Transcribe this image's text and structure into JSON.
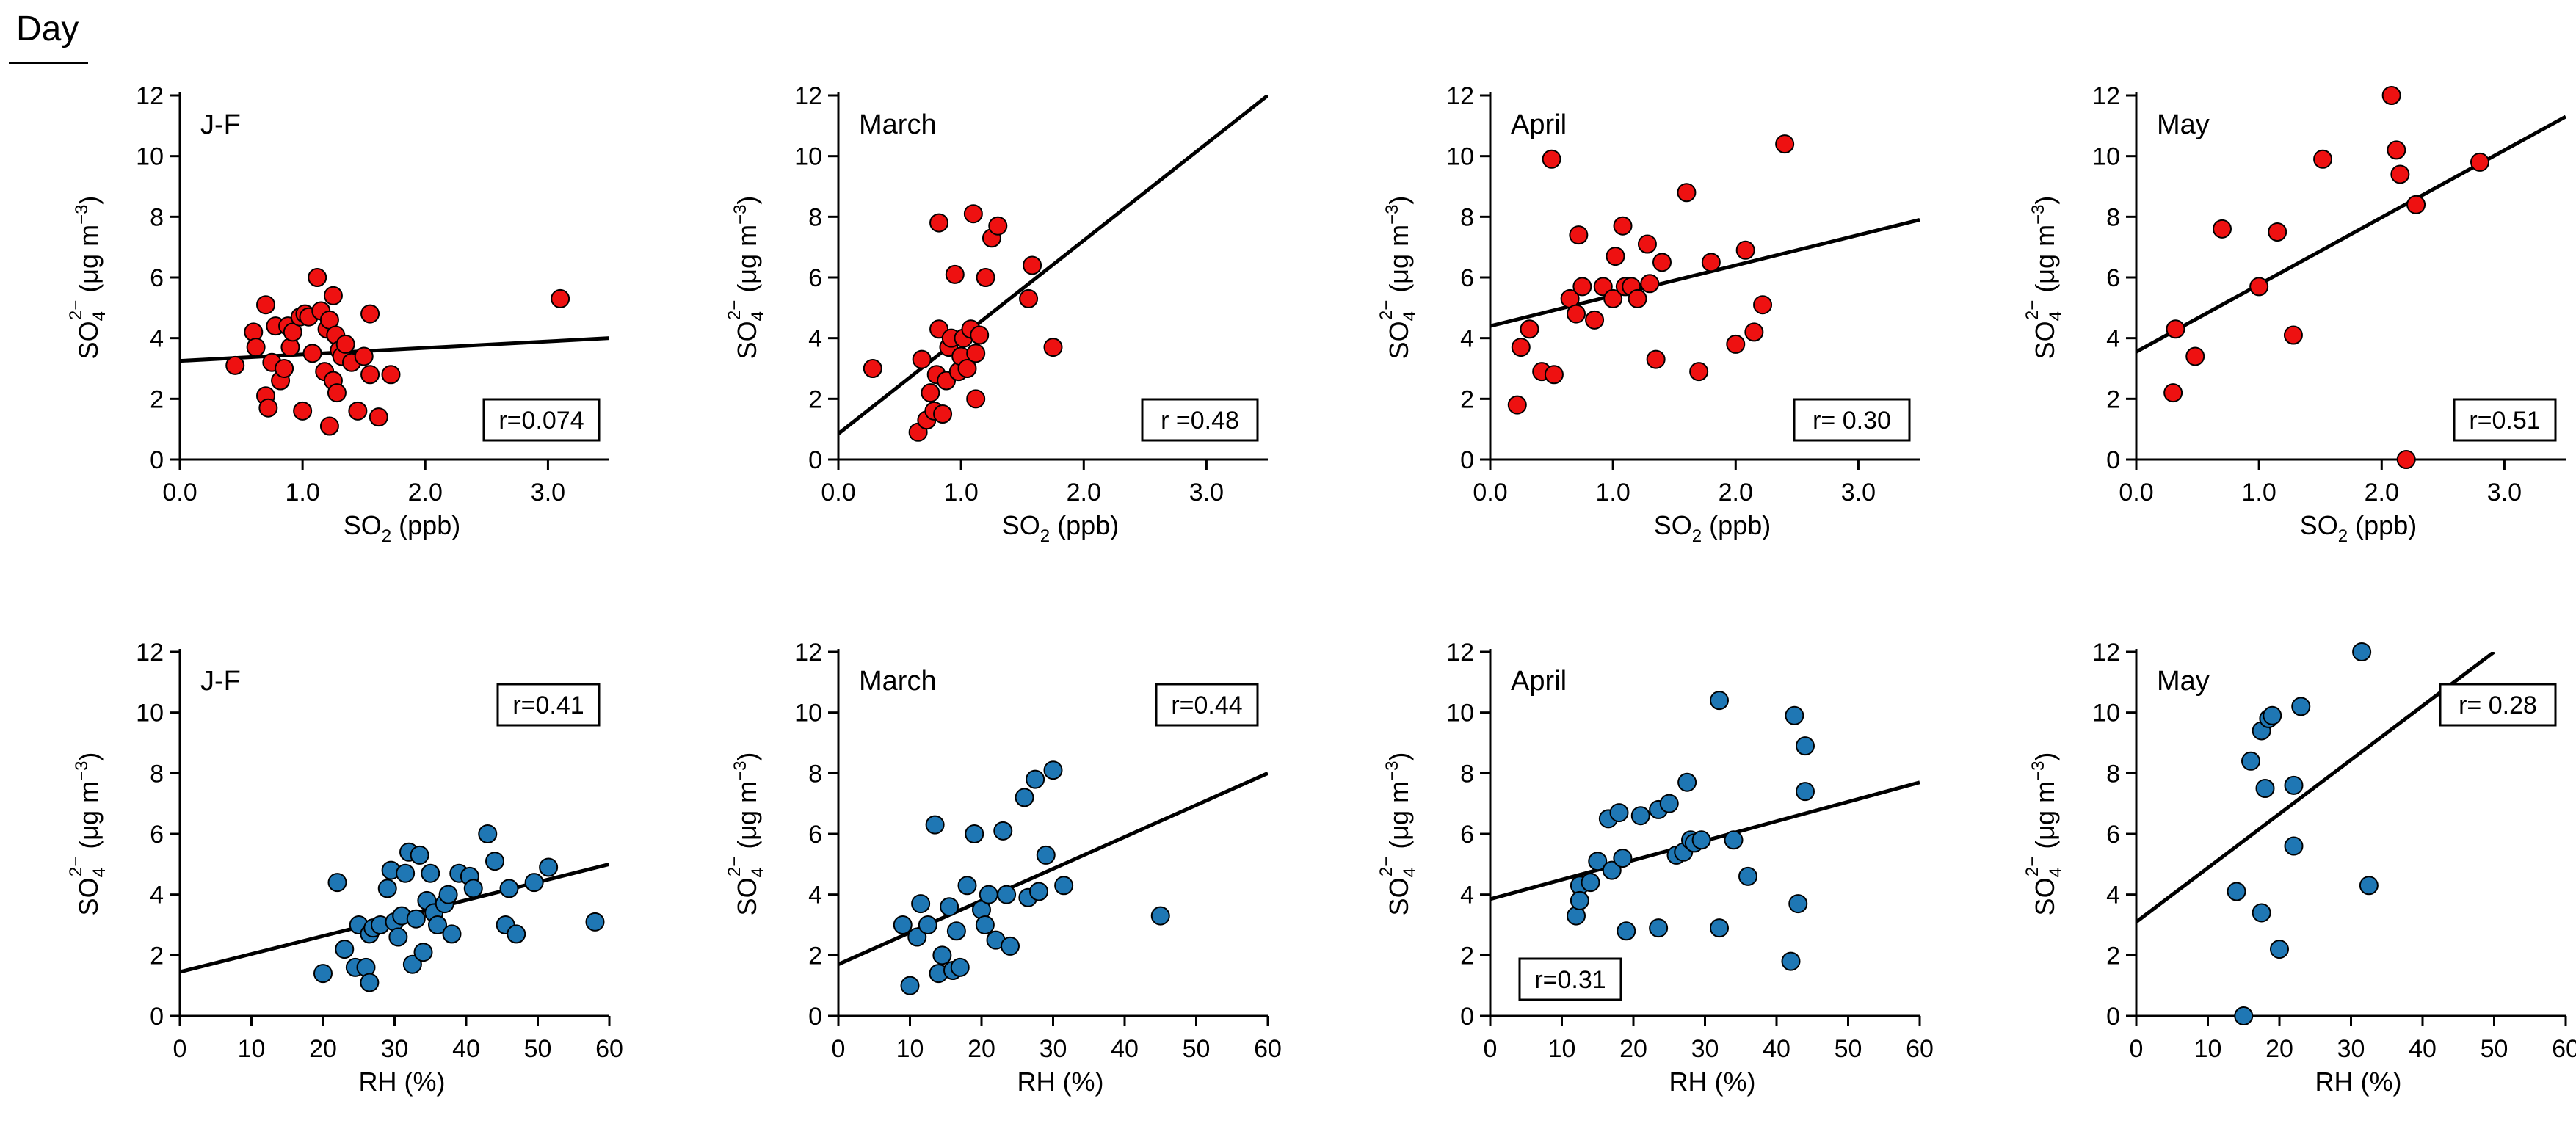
{
  "figure": {
    "title": "Day"
  },
  "style": {
    "red_fill": "#ee1111",
    "blue_fill": "#1f77b4",
    "line_color": "#000000"
  },
  "axis_labels": {
    "y_main": "SO",
    "y_sub": "4",
    "y_sup": "2−",
    "y_unit": " (μg m",
    "y_unit_sup": "−3",
    "y_close": ")",
    "x_so2_main": "SO",
    "x_so2_sub": "2",
    "x_so2_unit": " (ppb)",
    "x_rh": "RH (%)"
  },
  "chart_data": [
    {
      "type": "scatter",
      "panel": "J-F",
      "variable": "SO2",
      "xlim": [
        0,
        3.5
      ],
      "ylim": [
        0,
        12
      ],
      "xticks": [
        "0.0",
        "1.0",
        "2.0",
        "3.0"
      ],
      "yticks": [
        "0",
        "2",
        "4",
        "6",
        "8",
        "10",
        "12"
      ],
      "annotation": "r=0.074",
      "annotation_position": "bottom-right",
      "color": "red",
      "fit": {
        "x": [
          0,
          3.5
        ],
        "y": [
          3.25,
          4.0
        ]
      },
      "points": [
        [
          0.45,
          3.1
        ],
        [
          0.6,
          4.2
        ],
        [
          0.62,
          3.7
        ],
        [
          0.7,
          2.1
        ],
        [
          0.7,
          5.1
        ],
        [
          0.72,
          1.7
        ],
        [
          0.75,
          3.2
        ],
        [
          0.78,
          4.4
        ],
        [
          0.82,
          2.6
        ],
        [
          0.85,
          3.0
        ],
        [
          0.88,
          4.4
        ],
        [
          0.9,
          3.7
        ],
        [
          0.92,
          4.2
        ],
        [
          0.98,
          4.7
        ],
        [
          1.0,
          1.6
        ],
        [
          1.02,
          4.8
        ],
        [
          1.05,
          4.7
        ],
        [
          1.08,
          3.5
        ],
        [
          1.12,
          6.0
        ],
        [
          1.15,
          4.9
        ],
        [
          1.18,
          2.9
        ],
        [
          1.2,
          4.3
        ],
        [
          1.22,
          4.6
        ],
        [
          1.22,
          1.1
        ],
        [
          1.25,
          5.4
        ],
        [
          1.25,
          2.6
        ],
        [
          1.27,
          4.1
        ],
        [
          1.28,
          2.2
        ],
        [
          1.3,
          3.6
        ],
        [
          1.32,
          3.4
        ],
        [
          1.35,
          3.8
        ],
        [
          1.4,
          3.2
        ],
        [
          1.45,
          1.6
        ],
        [
          1.5,
          3.4
        ],
        [
          1.55,
          4.8
        ],
        [
          1.55,
          2.8
        ],
        [
          1.62,
          1.4
        ],
        [
          1.72,
          2.8
        ],
        [
          3.1,
          5.3
        ]
      ]
    },
    {
      "type": "scatter",
      "panel": "March",
      "variable": "SO2",
      "xlim": [
        0,
        3.5
      ],
      "ylim": [
        0,
        12
      ],
      "xticks": [
        "0.0",
        "1.0",
        "2.0",
        "3.0"
      ],
      "yticks": [
        "0",
        "2",
        "4",
        "6",
        "8",
        "10",
        "12"
      ],
      "annotation": "r =0.48",
      "annotation_position": "bottom-right",
      "color": "red",
      "fit": {
        "x": [
          0,
          3.5
        ],
        "y": [
          0.85,
          12.0
        ]
      },
      "points": [
        [
          0.28,
          3.0
        ],
        [
          0.65,
          0.9
        ],
        [
          0.68,
          3.3
        ],
        [
          0.72,
          1.3
        ],
        [
          0.75,
          2.2
        ],
        [
          0.78,
          1.6
        ],
        [
          0.8,
          2.8
        ],
        [
          0.82,
          4.3
        ],
        [
          0.82,
          7.8
        ],
        [
          0.85,
          1.5
        ],
        [
          0.88,
          2.6
        ],
        [
          0.9,
          3.7
        ],
        [
          0.92,
          4.0
        ],
        [
          0.95,
          6.1
        ],
        [
          0.98,
          2.9
        ],
        [
          1.0,
          3.4
        ],
        [
          1.02,
          4.0
        ],
        [
          1.05,
          3.0
        ],
        [
          1.08,
          4.3
        ],
        [
          1.1,
          8.1
        ],
        [
          1.12,
          2.0
        ],
        [
          1.12,
          3.5
        ],
        [
          1.15,
          4.1
        ],
        [
          1.2,
          6.0
        ],
        [
          1.25,
          7.3
        ],
        [
          1.3,
          7.7
        ],
        [
          1.55,
          5.3
        ],
        [
          1.58,
          6.4
        ],
        [
          1.75,
          3.7
        ]
      ]
    },
    {
      "type": "scatter",
      "panel": "April",
      "variable": "SO2",
      "xlim": [
        0,
        3.5
      ],
      "ylim": [
        0,
        12
      ],
      "xticks": [
        "0.0",
        "1.0",
        "2.0",
        "3.0"
      ],
      "yticks": [
        "0",
        "2",
        "4",
        "6",
        "8",
        "10",
        "12"
      ],
      "annotation": "r= 0.30",
      "annotation_position": "bottom-right",
      "color": "red",
      "fit": {
        "x": [
          0,
          3.5
        ],
        "y": [
          4.4,
          7.9
        ]
      },
      "points": [
        [
          0.22,
          1.8
        ],
        [
          0.25,
          3.7
        ],
        [
          0.32,
          4.3
        ],
        [
          0.42,
          2.9
        ],
        [
          0.5,
          9.9
        ],
        [
          0.52,
          2.8
        ],
        [
          0.65,
          5.3
        ],
        [
          0.7,
          4.8
        ],
        [
          0.72,
          7.4
        ],
        [
          0.75,
          5.7
        ],
        [
          0.85,
          4.6
        ],
        [
          0.92,
          5.7
        ],
        [
          1.0,
          5.3
        ],
        [
          1.02,
          6.7
        ],
        [
          1.08,
          7.7
        ],
        [
          1.1,
          5.7
        ],
        [
          1.15,
          5.7
        ],
        [
          1.2,
          5.3
        ],
        [
          1.28,
          7.1
        ],
        [
          1.3,
          5.8
        ],
        [
          1.35,
          3.3
        ],
        [
          1.4,
          6.5
        ],
        [
          1.6,
          8.8
        ],
        [
          1.7,
          2.9
        ],
        [
          1.8,
          6.5
        ],
        [
          2.0,
          3.8
        ],
        [
          2.08,
          6.9
        ],
        [
          2.15,
          4.2
        ],
        [
          2.22,
          5.1
        ],
        [
          2.4,
          10.4
        ]
      ]
    },
    {
      "type": "scatter",
      "panel": "May",
      "variable": "SO2",
      "xlim": [
        0,
        3.5
      ],
      "ylim": [
        0,
        12
      ],
      "xticks": [
        "0.0",
        "1.0",
        "2.0",
        "3.0"
      ],
      "yticks": [
        "0",
        "2",
        "4",
        "6",
        "8",
        "10",
        "12"
      ],
      "annotation": "r=0.51",
      "annotation_position": "bottom-right",
      "color": "red",
      "fit": {
        "x": [
          0,
          3.5
        ],
        "y": [
          3.55,
          11.3
        ]
      },
      "points": [
        [
          0.3,
          2.2
        ],
        [
          0.32,
          4.3
        ],
        [
          0.48,
          3.4
        ],
        [
          0.7,
          7.6
        ],
        [
          1.0,
          5.7
        ],
        [
          1.15,
          7.5
        ],
        [
          1.28,
          4.1
        ],
        [
          1.52,
          9.9
        ],
        [
          2.08,
          12.0
        ],
        [
          2.12,
          10.2
        ],
        [
          2.15,
          9.4
        ],
        [
          2.2,
          0.0
        ],
        [
          2.28,
          8.4
        ],
        [
          2.8,
          9.8
        ]
      ]
    },
    {
      "type": "scatter",
      "panel": "J-F",
      "variable": "RH",
      "xlim": [
        0,
        60
      ],
      "ylim": [
        0,
        12
      ],
      "xticks": [
        "0",
        "10",
        "20",
        "30",
        "40",
        "50",
        "60"
      ],
      "yticks": [
        "0",
        "2",
        "4",
        "6",
        "8",
        "10",
        "12"
      ],
      "annotation": "r=0.41",
      "annotation_position": "top-right",
      "color": "blue",
      "fit": {
        "x": [
          0,
          60
        ],
        "y": [
          1.45,
          5.0
        ]
      },
      "points": [
        [
          20,
          1.4
        ],
        [
          22,
          4.4
        ],
        [
          23,
          2.2
        ],
        [
          24.5,
          1.6
        ],
        [
          25,
          3.0
        ],
        [
          26,
          1.6
        ],
        [
          26.5,
          1.1
        ],
        [
          26.5,
          2.7
        ],
        [
          27,
          2.9
        ],
        [
          28,
          3.0
        ],
        [
          29,
          4.2
        ],
        [
          29.5,
          4.8
        ],
        [
          30,
          3.1
        ],
        [
          30.5,
          2.6
        ],
        [
          31,
          3.3
        ],
        [
          31.5,
          4.7
        ],
        [
          32,
          5.4
        ],
        [
          32.5,
          1.7
        ],
        [
          33,
          3.2
        ],
        [
          33.5,
          5.3
        ],
        [
          34,
          2.1
        ],
        [
          34.5,
          3.8
        ],
        [
          35,
          4.7
        ],
        [
          35.5,
          3.4
        ],
        [
          36,
          3.0
        ],
        [
          37,
          3.7
        ],
        [
          37.5,
          4.0
        ],
        [
          38,
          2.7
        ],
        [
          39,
          4.7
        ],
        [
          40.5,
          4.6
        ],
        [
          41,
          4.2
        ],
        [
          43,
          6.0
        ],
        [
          44,
          5.1
        ],
        [
          45.5,
          3.0
        ],
        [
          46,
          4.2
        ],
        [
          47,
          2.7
        ],
        [
          49.5,
          4.4
        ],
        [
          51.5,
          4.9
        ],
        [
          58,
          3.1
        ]
      ]
    },
    {
      "type": "scatter",
      "panel": "March",
      "variable": "RH",
      "xlim": [
        0,
        60
      ],
      "ylim": [
        0,
        12
      ],
      "xticks": [
        "0",
        "10",
        "20",
        "30",
        "40",
        "50",
        "60"
      ],
      "yticks": [
        "0",
        "2",
        "4",
        "6",
        "8",
        "10",
        "12"
      ],
      "annotation": "r=0.44",
      "annotation_position": "top-right",
      "color": "blue",
      "fit": {
        "x": [
          0,
          60
        ],
        "y": [
          1.7,
          8.0
        ]
      },
      "points": [
        [
          9,
          3.0
        ],
        [
          10,
          1.0
        ],
        [
          11,
          2.6
        ],
        [
          11.5,
          3.7
        ],
        [
          12.5,
          3.0
        ],
        [
          13.5,
          6.3
        ],
        [
          14,
          1.4
        ],
        [
          14.5,
          2.0
        ],
        [
          15.5,
          3.6
        ],
        [
          16,
          1.5
        ],
        [
          16.5,
          2.8
        ],
        [
          17,
          1.6
        ],
        [
          18,
          4.3
        ],
        [
          19,
          6.0
        ],
        [
          20,
          3.5
        ],
        [
          20.5,
          3.0
        ],
        [
          21,
          4.0
        ],
        [
          22,
          2.5
        ],
        [
          23,
          6.1
        ],
        [
          23.5,
          4.0
        ],
        [
          24,
          2.3
        ],
        [
          26,
          7.2
        ],
        [
          26.5,
          3.9
        ],
        [
          27.5,
          7.8
        ],
        [
          28,
          4.1
        ],
        [
          29,
          5.3
        ],
        [
          30,
          8.1
        ],
        [
          31.5,
          4.3
        ],
        [
          45,
          3.3
        ]
      ]
    },
    {
      "type": "scatter",
      "panel": "April",
      "variable": "RH",
      "xlim": [
        0,
        60
      ],
      "ylim": [
        0,
        12
      ],
      "xticks": [
        "0",
        "10",
        "20",
        "30",
        "40",
        "50",
        "60"
      ],
      "yticks": [
        "0",
        "2",
        "4",
        "6",
        "8",
        "10",
        "12"
      ],
      "annotation": "r=0.31",
      "annotation_position": "bottom-left",
      "color": "blue",
      "fit": {
        "x": [
          0,
          60
        ],
        "y": [
          3.85,
          7.7
        ]
      },
      "points": [
        [
          12,
          3.3
        ],
        [
          12.5,
          4.3
        ],
        [
          12.5,
          3.8
        ],
        [
          14,
          4.4
        ],
        [
          15,
          5.1
        ],
        [
          16.5,
          6.5
        ],
        [
          17,
          4.8
        ],
        [
          18,
          6.7
        ],
        [
          18.5,
          5.2
        ],
        [
          19,
          2.8
        ],
        [
          21,
          6.6
        ],
        [
          23.5,
          2.9
        ],
        [
          23.5,
          6.8
        ],
        [
          25,
          7.0
        ],
        [
          26,
          5.3
        ],
        [
          27,
          5.4
        ],
        [
          27.5,
          7.7
        ],
        [
          28,
          5.8
        ],
        [
          28.5,
          5.7
        ],
        [
          29.5,
          5.8
        ],
        [
          32,
          2.9
        ],
        [
          32,
          10.4
        ],
        [
          34,
          5.8
        ],
        [
          36,
          4.6
        ],
        [
          42,
          1.8
        ],
        [
          42.5,
          9.9
        ],
        [
          43,
          3.7
        ],
        [
          44,
          8.9
        ],
        [
          44,
          7.4
        ]
      ]
    },
    {
      "type": "scatter",
      "panel": "May",
      "variable": "RH",
      "xlim": [
        0,
        60
      ],
      "ylim": [
        0,
        12
      ],
      "xticks": [
        "0",
        "10",
        "20",
        "30",
        "40",
        "50",
        "60"
      ],
      "yticks": [
        "0",
        "2",
        "4",
        "6",
        "8",
        "10",
        "12"
      ],
      "annotation": "r= 0.28",
      "annotation_position": "top-right",
      "color": "blue",
      "fit": {
        "x": [
          0,
          50
        ],
        "y": [
          3.1,
          12.0
        ]
      },
      "points": [
        [
          14,
          4.1
        ],
        [
          15,
          0.0
        ],
        [
          16,
          8.4
        ],
        [
          17.5,
          9.4
        ],
        [
          17.5,
          3.4
        ],
        [
          18,
          7.5
        ],
        [
          18.5,
          9.8
        ],
        [
          19,
          9.9
        ],
        [
          20,
          2.2
        ],
        [
          22,
          7.6
        ],
        [
          22,
          5.6
        ],
        [
          23,
          10.2
        ],
        [
          31.5,
          12.0
        ],
        [
          32.5,
          4.3
        ]
      ]
    }
  ]
}
